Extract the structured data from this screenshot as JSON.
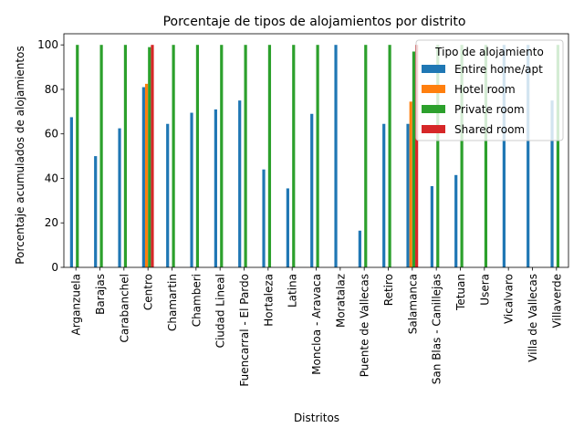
{
  "chart_data": {
    "type": "bar",
    "title": "Porcentaje de tipos de alojamientos por distrito",
    "xlabel": "Distritos",
    "ylabel": "Porcentaje  acumulados de alojamientos",
    "ylim": [
      0,
      105
    ],
    "yticks": [
      0,
      20,
      40,
      60,
      80,
      100
    ],
    "grid": false,
    "legend": {
      "title": "Tipo de alojamiento",
      "placement": "top-right"
    },
    "categories": [
      "Arganzuela",
      "Barajas",
      "Carabanchel",
      "Centro",
      "Chamartin",
      "Chamberi",
      "Ciudad Lineal",
      "Fuencarral - El Pardo",
      "Hortaleza",
      "Latina",
      "Moncloa - Aravaca",
      "Moratalaz",
      "Puente de Vallecas",
      "Retiro",
      "Salamanca",
      "San Blas - Canillejas",
      "Tetuan",
      "Usera",
      "Vicalvaro",
      "Villa de Vallecas",
      "Villaverde"
    ],
    "series": [
      {
        "name": "Entire home/apt",
        "color": "#1f77b4",
        "values": [
          67.5,
          50,
          62.5,
          81,
          64.5,
          69.5,
          71,
          75,
          44,
          35.5,
          69,
          100,
          16.5,
          64.5,
          64.5,
          36.5,
          41.5,
          null,
          100,
          100,
          75
        ]
      },
      {
        "name": "Hotel room",
        "color": "#ff7f0e",
        "values": [
          null,
          null,
          null,
          82.5,
          null,
          null,
          null,
          null,
          null,
          null,
          null,
          null,
          null,
          null,
          74.5,
          null,
          null,
          null,
          null,
          null,
          null
        ]
      },
      {
        "name": "Private room",
        "color": "#2ca02c",
        "values": [
          100,
          100,
          100,
          99,
          100,
          100,
          100,
          100,
          100,
          100,
          100,
          null,
          100,
          100,
          97,
          100,
          100,
          100,
          null,
          null,
          100
        ]
      },
      {
        "name": "Shared room",
        "color": "#d62728",
        "values": [
          null,
          null,
          null,
          100,
          null,
          null,
          null,
          null,
          null,
          null,
          null,
          null,
          null,
          null,
          100,
          null,
          null,
          null,
          null,
          null,
          null
        ]
      }
    ]
  }
}
